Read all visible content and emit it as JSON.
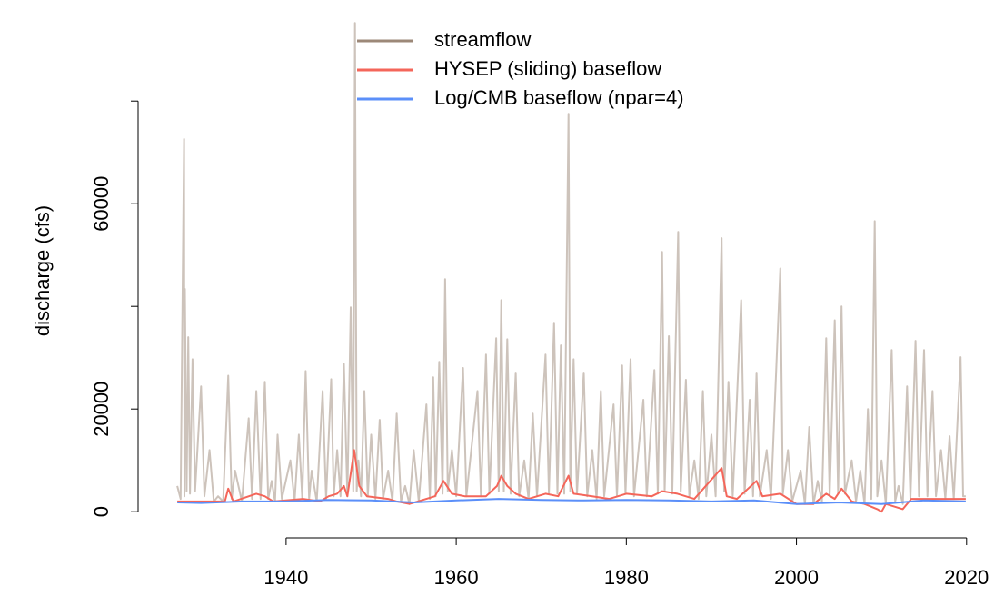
{
  "chart_data": {
    "type": "line",
    "y_label": "discharge (cfs)",
    "xlim": [
      1922.6,
      2022.8
    ],
    "ylim": [
      -5100,
      98800
    ],
    "xticks": [
      1940,
      1960,
      1980,
      2000,
      2020
    ],
    "yticks": [
      0,
      20000,
      {
        "value": 40000,
        "label": null
      },
      60000,
      {
        "value": 80000,
        "label": null
      }
    ],
    "legend": "top",
    "series": [
      {
        "name": "streamflow",
        "color": "#9c8878",
        "opacity": 0.5,
        "x": [
          1927.2,
          1927.6,
          1928.0,
          1928.05,
          1928.1,
          1928.3,
          1928.5,
          1928.7,
          1929.0,
          1929.3,
          1930.0,
          1930.4,
          1931.0,
          1931.5,
          1932.0,
          1932.6,
          1933.2,
          1933.6,
          1934.0,
          1934.8,
          1935.6,
          1936.0,
          1936.5,
          1937.0,
          1937.5,
          1937.9,
          1938.3,
          1938.7,
          1939.0,
          1939.5,
          1940.5,
          1941.0,
          1941.5,
          1941.9,
          1942.3,
          1942.7,
          1943.0,
          1943.6,
          1944.3,
          1944.7,
          1945.3,
          1945.6,
          1946.0,
          1946.4,
          1946.8,
          1947.2,
          1947.6,
          1947.9,
          1948.1,
          1948.3,
          1948.5,
          1948.8,
          1949.2,
          1949.6,
          1950.0,
          1950.5,
          1951.0,
          1951.4,
          1952.0,
          1952.5,
          1953.0,
          1953.5,
          1954.0,
          1954.5,
          1955.0,
          1955.6,
          1956.5,
          1956.9,
          1957.3,
          1957.6,
          1958.0,
          1958.4,
          1958.7,
          1959.0,
          1959.5,
          1960.0,
          1960.8,
          1961.2,
          1962.5,
          1962.9,
          1963.5,
          1963.9,
          1964.7,
          1965.0,
          1965.3,
          1965.6,
          1966.0,
          1966.4,
          1967.0,
          1967.4,
          1968.0,
          1968.5,
          1969.0,
          1969.5,
          1970.5,
          1970.9,
          1971.5,
          1971.9,
          1972.3,
          1972.7,
          1973.2,
          1973.4,
          1973.8,
          1974.2,
          1975.0,
          1975.4,
          1976.0,
          1976.5,
          1977.0,
          1977.4,
          1978.5,
          1978.9,
          1979.5,
          1979.9,
          1980.5,
          1980.9,
          1982.0,
          1982.4,
          1983.3,
          1983.7,
          1984.2,
          1984.5,
          1985.0,
          1985.4,
          1986.1,
          1986.4,
          1987.0,
          1987.4,
          1988.0,
          1988.5,
          1989.0,
          1989.4,
          1990.0,
          1990.5,
          1991.2,
          1991.5,
          1992.0,
          1992.5,
          1993.5,
          1993.9,
          1994.5,
          1994.9,
          1995.3,
          1995.7,
          1996.5,
          1997.0,
          1998.1,
          1998.4,
          1999.0,
          1999.5,
          2000.5,
          2001.0,
          2001.5,
          2002.0,
          2002.5,
          2003.0,
          2003.5,
          2003.9,
          2004.5,
          2004.9,
          2005.3,
          2005.7,
          2006.5,
          2007.0,
          2007.5,
          2008.0,
          2008.4,
          2008.8,
          2009.2,
          2009.5,
          2010.0,
          2010.5,
          2011.2,
          2011.6,
          2012.0,
          2012.5,
          2013.0,
          2013.4,
          2014.0,
          2014.4,
          2015.0,
          2015.4,
          2016.0,
          2016.4,
          2017.0,
          2017.5,
          2018.0,
          2018.5,
          2019.3,
          2019.6,
          2019.9
        ],
        "values": [
          5000,
          2500,
          72600,
          3000,
          43400,
          4000,
          34000,
          3500,
          29700,
          4000,
          24400,
          3000,
          12000,
          2000,
          3000,
          2000,
          26500,
          2500,
          8000,
          2000,
          18200,
          2500,
          23500,
          2500,
          25300,
          2500,
          6000,
          2000,
          15000,
          2500,
          10000,
          2000,
          15000,
          2500,
          27400,
          2500,
          8000,
          2000,
          23500,
          2500,
          25800,
          3000,
          12000,
          3000,
          28800,
          3000,
          39800,
          4000,
          95200,
          4000,
          10000,
          3000,
          23500,
          3000,
          15000,
          2500,
          17900,
          2500,
          8000,
          2000,
          19100,
          2000,
          5000,
          1500,
          12000,
          2000,
          20900,
          2500,
          26200,
          3000,
          29200,
          3500,
          45300,
          4000,
          12000,
          3000,
          28000,
          3000,
          23500,
          3000,
          30600,
          3500,
          33800,
          4000,
          41200,
          4000,
          33600,
          3500,
          27100,
          3000,
          10000,
          2500,
          19100,
          3000,
          30600,
          3500,
          36800,
          3500,
          32400,
          3500,
          77500,
          4000,
          29700,
          3500,
          27100,
          3000,
          12000,
          2500,
          23500,
          3000,
          20900,
          3000,
          28500,
          3500,
          29700,
          3000,
          21800,
          3000,
          27600,
          3500,
          50600,
          4000,
          34200,
          3500,
          54500,
          4000,
          25700,
          3000,
          10000,
          2500,
          23500,
          3000,
          15000,
          3000,
          53300,
          4000,
          25300,
          3000,
          41200,
          3500,
          21800,
          3000,
          27100,
          3000,
          12000,
          2500,
          47400,
          3500,
          12000,
          2000,
          8000,
          1500,
          16500,
          1500,
          6000,
          2000,
          33800,
          3000,
          37300,
          3500,
          40000,
          3500,
          10000,
          2000,
          8000,
          1500,
          20000,
          2500,
          56600,
          3000,
          10000,
          1500,
          31500,
          2000,
          5000,
          1500,
          24400,
          2500,
          33300,
          3000,
          31500,
          3000,
          23500,
          3000,
          12000,
          2500,
          14700,
          2500,
          30100,
          3000,
          3000
        ]
      },
      {
        "name": "HYSEP (sliding) baseflow",
        "color": "#f4665a",
        "x": [
          1927.2,
          1932.8,
          1933.2,
          1933.8,
          1936.5,
          1937.5,
          1938.5,
          1942.0,
          1944.0,
          1945.0,
          1946.0,
          1946.8,
          1947.2,
          1948.0,
          1948.6,
          1949.5,
          1952.0,
          1953.0,
          1954.5,
          1957.5,
          1958.5,
          1959.5,
          1961.0,
          1963.5,
          1964.8,
          1965.3,
          1966.0,
          1967.0,
          1968.5,
          1970.5,
          1972.0,
          1973.2,
          1973.8,
          1976.0,
          1978.0,
          1980.0,
          1983.0,
          1984.2,
          1986.0,
          1988.0,
          1991.2,
          1991.8,
          1993.0,
          1995.3,
          1996.0,
          1998.1,
          2000.0,
          2002.0,
          2003.5,
          2004.5,
          2005.3,
          2006.5,
          2008.0,
          2009.5,
          2010.0,
          2010.5,
          2012.5,
          2013.5,
          2016.5,
          2019.9
        ],
        "values": [
          2000,
          2000,
          4500,
          2000,
          3500,
          3000,
          2000,
          2500,
          2000,
          3000,
          3500,
          5000,
          3000,
          12000,
          5000,
          3000,
          2500,
          2000,
          1500,
          3000,
          6000,
          3500,
          3000,
          3000,
          5000,
          7000,
          5000,
          3500,
          2500,
          3500,
          3000,
          7000,
          3500,
          3000,
          2500,
          3500,
          3000,
          4000,
          3500,
          2500,
          8500,
          3000,
          2500,
          6000,
          3000,
          3500,
          1500,
          1500,
          3500,
          2500,
          4500,
          2000,
          1500,
          500,
          0,
          1500,
          500,
          2500,
          2500,
          2500
        ]
      },
      {
        "name": "Log/CMB baseflow (npar=4)",
        "color": "#5b8ff9",
        "x": [
          1927.2,
          1930,
          1935,
          1940,
          1945,
          1950,
          1955,
          1960,
          1965,
          1970,
          1975,
          1980,
          1985,
          1990,
          1995,
          2000,
          2005,
          2010,
          2015,
          2019.9
        ],
        "values": [
          1800,
          1700,
          2000,
          2000,
          2300,
          2200,
          1800,
          2200,
          2500,
          2300,
          2200,
          2300,
          2200,
          2000,
          2200,
          1500,
          1800,
          1500,
          2200,
          2000
        ]
      }
    ]
  }
}
